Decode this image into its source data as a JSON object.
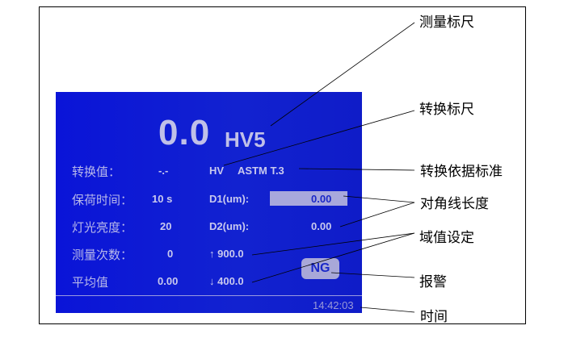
{
  "screen": {
    "main_value": "0.0",
    "main_unit": "HV5",
    "rows": [
      {
        "label": "转换值：",
        "value": "-.-"
      },
      {
        "label": "保荷时间：",
        "value": "10 s"
      },
      {
        "label": "灯光亮度：",
        "value": "20"
      },
      {
        "label": "测量次数：",
        "value": "0"
      },
      {
        "label": "平均值",
        "value": "0.00"
      }
    ],
    "conversion_scale": "HV",
    "conversion_standard": "ASTM T.3",
    "d1_label": "D1(um):",
    "d1_value": "0.00",
    "d2_label": "D2(um):",
    "d2_value": "0.00",
    "upper_limit": "↑ 900.0",
    "lower_limit": "↓ 400.0",
    "alarm": "NG",
    "time": "14:42:03"
  },
  "annotations": {
    "measure_scale": "测量标尺",
    "convert_scale": "转换标尺",
    "convert_standard": "转换依据标准",
    "diagonal_length": "对角线长度",
    "threshold_setting": "域值设定",
    "alarm": "报警",
    "time": "时间"
  },
  "colors": {
    "screen_bg": "#0a14d8",
    "text": "#c9c9ee",
    "leader_line": "#000000"
  }
}
